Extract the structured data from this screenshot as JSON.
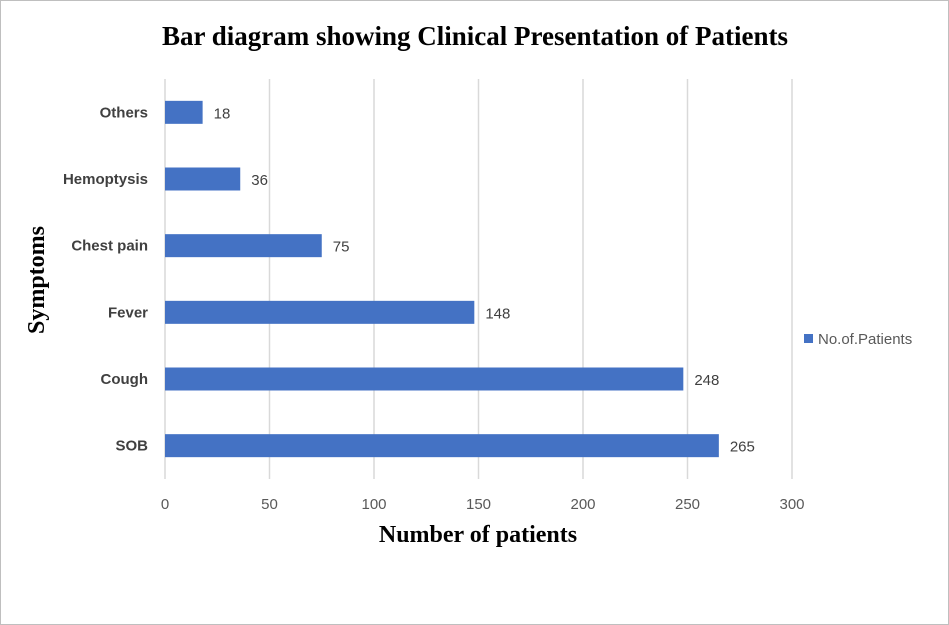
{
  "chart_data": {
    "type": "bar",
    "orientation": "horizontal",
    "title": "Bar diagram showing Clinical Presentation of Patients",
    "xlabel": "Number of patients",
    "ylabel": "Symptoms",
    "categories": [
      "SOB",
      "Cough",
      "Fever",
      "Chest pain",
      "Hemoptysis",
      "Others"
    ],
    "series": [
      {
        "name": "No.of.Patients",
        "values": [
          265,
          248,
          148,
          75,
          36,
          18
        ],
        "color": "#4472c4"
      }
    ],
    "xlim": [
      0,
      300
    ],
    "xticks": [
      0,
      50,
      100,
      150,
      200,
      250,
      300
    ],
    "grid": "vertical",
    "legend_position": "right",
    "data_labels": true
  }
}
